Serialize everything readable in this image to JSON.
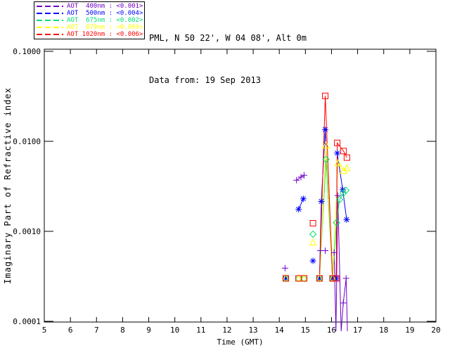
{
  "header": {
    "site": "PML, N 50 22', W 04 08', Alt 0m",
    "date": "Data from: 19 Sep 2013"
  },
  "chart_data": {
    "type": "scatter",
    "title": "",
    "xlabel": "Time (GMT)",
    "ylabel": "Imaginary Part of Refractive index",
    "x_range": [
      5,
      20
    ],
    "y_scale": "log",
    "y_range": [
      0.0001,
      0.1
    ],
    "grid": false,
    "legend_position": "outside-top-left",
    "x_ticks": [
      5,
      6,
      7,
      8,
      9,
      10,
      11,
      12,
      13,
      14,
      15,
      16,
      17,
      18,
      19,
      20
    ],
    "y_ticks": [
      {
        "label": "0.1000",
        "value": 0.1
      },
      {
        "label": "0.0100",
        "value": 0.01
      },
      {
        "label": "0.0010",
        "value": 0.001
      },
      {
        "label": "0.0001",
        "value": 0.0001
      }
    ],
    "series": [
      {
        "name": "AOT 400nm",
        "legend_label": "AOT  400nm : <0.001>",
        "mean": "<0.001>",
        "color": "#7000C8",
        "marker": "plus",
        "segments": [
          [
            [
              14.22,
              0.00039
            ]
          ],
          [
            [
              14.66,
              0.0037
            ],
            [
              14.83,
              0.004
            ],
            [
              14.95,
              0.0042
            ]
          ],
          [
            [
              15.57,
              0.00061
            ],
            [
              15.76,
              0.00061
            ]
          ],
          [
            [
              16.1,
              0.00058
            ],
            [
              16.17,
              4.5e-05
            ],
            [
              16.24,
              0.0025
            ],
            [
              16.37,
              3e-05
            ],
            [
              16.45,
              0.00016
            ],
            [
              16.56,
              0.0003
            ],
            [
              16.61,
              3e-05
            ]
          ]
        ]
      },
      {
        "name": "AOT 500nm",
        "legend_label": "AOT  500nm : <0.004>",
        "mean": "<0.004>",
        "color": "#0000FF",
        "marker": "asterisk",
        "segments": [
          [
            [
              14.25,
              0.0003
            ]
          ],
          [
            [
              14.74,
              0.00176
            ],
            [
              14.92,
              0.0023
            ]
          ],
          [
            [
              15.29,
              0.00047
            ]
          ],
          [
            [
              15.54,
              0.0003
            ],
            [
              15.61,
              0.00215
            ],
            [
              15.76,
              0.0135
            ],
            [
              16.04,
              0.0003
            ],
            [
              16.18,
              0.0003
            ],
            [
              16.22,
              0.0074
            ],
            [
              16.43,
              0.0029
            ],
            [
              16.58,
              0.00135
            ]
          ]
        ]
      },
      {
        "name": "AOT 675nm",
        "legend_label": "AOT  675nm : <0.002>",
        "mean": "<0.002>",
        "color": "#00E070",
        "marker": "diamond",
        "segments": [
          [
            [
              14.25,
              0.0003
            ]
          ],
          [
            [
              14.74,
              0.0003
            ]
          ],
          [
            [
              14.95,
              0.0003
            ]
          ],
          [
            [
              15.29,
              0.00093
            ]
          ],
          [
            [
              15.54,
              0.0003
            ],
            [
              15.79,
              0.0063
            ],
            [
              16.04,
              0.0003
            ],
            [
              16.19,
              0.00125
            ],
            [
              16.31,
              0.00225
            ],
            [
              16.45,
              0.00265
            ],
            [
              16.55,
              0.00285
            ]
          ]
        ]
      },
      {
        "name": "AOT 870nm",
        "legend_label": "AOT  870nm : <0.003>",
        "mean": "<0.003>",
        "color": "#FFFF00",
        "marker": "triangle",
        "segments": [
          [
            [
              14.25,
              0.0003
            ]
          ],
          [
            [
              14.74,
              0.0003
            ]
          ],
          [
            [
              14.95,
              0.0003
            ]
          ],
          [
            [
              15.29,
              0.00075
            ]
          ],
          [
            [
              15.54,
              0.0003
            ],
            [
              15.79,
              0.009
            ],
            [
              16.04,
              0.0003
            ],
            [
              16.25,
              0.0057
            ],
            [
              16.46,
              0.0047
            ],
            [
              16.59,
              0.005
            ]
          ]
        ]
      },
      {
        "name": "AOT 1020nm",
        "legend_label": "AOT 1020nm : <0.006>",
        "mean": "<0.006>",
        "color": "#FF0000",
        "marker": "square",
        "segments": [
          [
            [
              14.25,
              0.0003
            ]
          ],
          [
            [
              14.74,
              0.0003
            ]
          ],
          [
            [
              14.95,
              0.0003
            ]
          ],
          [
            [
              15.29,
              0.00123
            ]
          ],
          [
            [
              15.54,
              0.0003
            ],
            [
              15.76,
              0.032
            ],
            [
              16.04,
              0.0003
            ],
            [
              16.18,
              0.0003
            ],
            [
              16.22,
              0.0096
            ],
            [
              16.46,
              0.0078
            ],
            [
              16.59,
              0.0066
            ]
          ]
        ]
      }
    ]
  }
}
